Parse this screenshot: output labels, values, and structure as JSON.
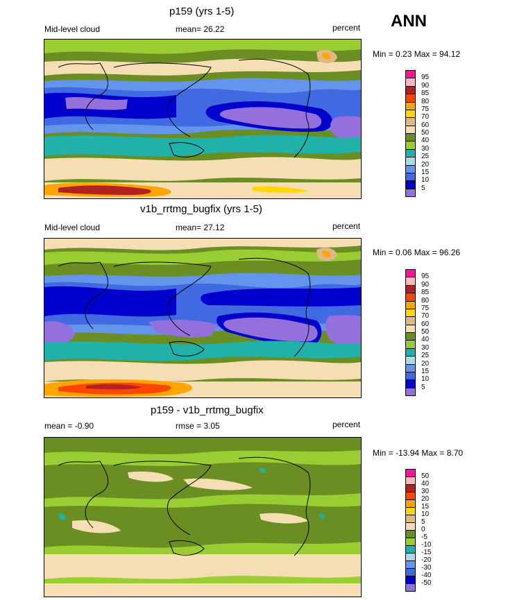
{
  "season": "ANN",
  "colors": {
    "abs": [
      "#9370db",
      "#0000cd",
      "#4169e1",
      "#6495ed",
      "#add8e6",
      "#20b2aa",
      "#9acd32",
      "#6b8e23",
      "#f5deb3",
      "#deb887",
      "#ffd700",
      "#ffa500",
      "#ff4500",
      "#b22222",
      "#ffb6c1",
      "#ff1493"
    ],
    "diff": [
      "#9370db",
      "#0000cd",
      "#4169e1",
      "#6495ed",
      "#add8e6",
      "#20b2aa",
      "#9acd32",
      "#6b8e23",
      "#f5deb3",
      "#deb887",
      "#ffd700",
      "#ffa500",
      "#ff4500",
      "#b22222",
      "#ffb6c1",
      "#ff1493"
    ]
  },
  "panels": [
    {
      "title": "p159 (yrs 1-5)",
      "left_label": "Mid-level cloud",
      "center_label": "mean=  26.22",
      "right_label": "percent",
      "minmax": "Min =   0.23 Max =  94.12",
      "levels": [
        "5",
        "10",
        "15",
        "20",
        "25",
        "30",
        "40",
        "50",
        "60",
        "70",
        "75",
        "80",
        "85",
        "90",
        "95"
      ]
    },
    {
      "title": "v1b_rrtmg_bugfix (yrs 1-5)",
      "left_label": "Mid-level cloud",
      "center_label": "mean=  27.12",
      "right_label": "percent",
      "minmax": "Min =   0.06 Max =  96.26",
      "levels": [
        "5",
        "10",
        "15",
        "20",
        "25",
        "30",
        "40",
        "50",
        "60",
        "70",
        "75",
        "80",
        "85",
        "90",
        "95"
      ]
    },
    {
      "title": "p159 - v1b_rrtmg_bugfix",
      "left_label": "mean =  -0.90",
      "center_label": "rmse =    3.05",
      "right_label": "percent",
      "minmax": "Min = -13.94 Max =    8.70",
      "levels": [
        "-50",
        "-40",
        "-30",
        "-20",
        "-15",
        "-10",
        "-5",
        "0",
        "5",
        "10",
        "15",
        "20",
        "30",
        "40",
        "50"
      ]
    }
  ],
  "chart_data": [
    {
      "type": "heatmap",
      "title": "p159 (yrs 1-5)",
      "variable": "Mid-level cloud",
      "units": "percent",
      "mean": 26.22,
      "min": 0.23,
      "max": 94.12,
      "contour_levels": [
        5,
        10,
        15,
        20,
        25,
        30,
        40,
        50,
        60,
        70,
        75,
        80,
        85,
        90,
        95
      ],
      "legend_placement": "right"
    },
    {
      "type": "heatmap",
      "title": "v1b_rrtmg_bugfix (yrs 1-5)",
      "variable": "Mid-level cloud",
      "units": "percent",
      "mean": 27.12,
      "min": 0.06,
      "max": 96.26,
      "contour_levels": [
        5,
        10,
        15,
        20,
        25,
        30,
        40,
        50,
        60,
        70,
        75,
        80,
        85,
        90,
        95
      ],
      "legend_placement": "right"
    },
    {
      "type": "heatmap",
      "title": "p159 - v1b_rrtmg_bugfix",
      "units": "percent",
      "mean": -0.9,
      "rmse": 3.05,
      "min": -13.94,
      "max": 8.7,
      "contour_levels": [
        -50,
        -40,
        -30,
        -20,
        -15,
        -10,
        -5,
        0,
        5,
        10,
        15,
        20,
        30,
        40,
        50
      ],
      "legend_placement": "right"
    }
  ]
}
